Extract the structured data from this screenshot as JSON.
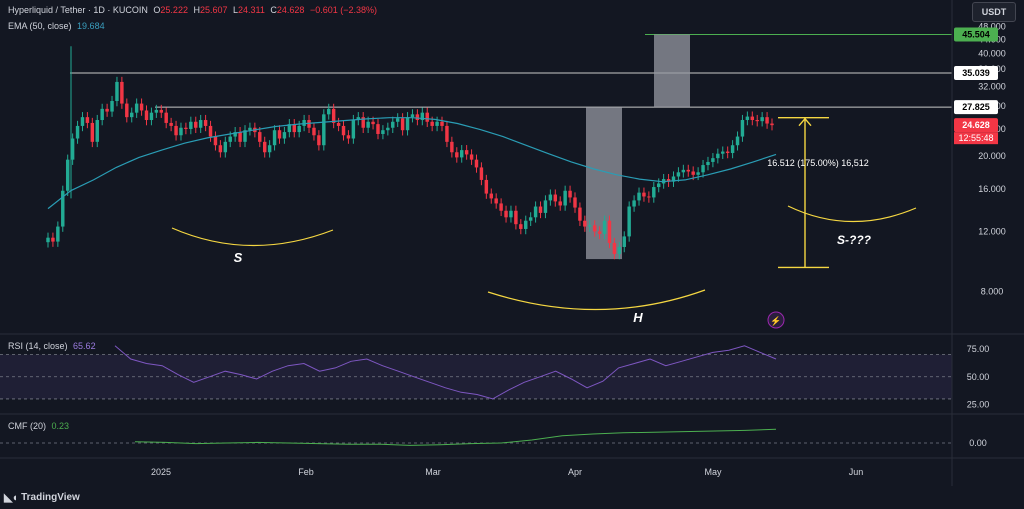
{
  "header": {
    "symbol": "Hyperliquid / Tether · 1D · KUCOIN",
    "open_label": "O",
    "open": "25.222",
    "high_label": "H",
    "high": "25.607",
    "low_label": "L",
    "low": "24.311",
    "close_label": "C",
    "close": "24.628",
    "change": "−0.601 (−2.38%)",
    "ema_label": "EMA (50, close)",
    "ema_value": "19.684"
  },
  "currency_button": "USDT",
  "rsi_header": {
    "label": "RSI (14, close)",
    "value": "65.62"
  },
  "cmf_header": {
    "label": "CMF (20)",
    "value": "0.23"
  },
  "footer": {
    "brand": "TradingView"
  },
  "colors": {
    "background": "#131722",
    "up": "#22ab94",
    "down": "#f23645",
    "ema": "#2a9db5",
    "rsi": "#7e57c2",
    "cmf": "#4caf50",
    "annotation": "#f5d742",
    "level_line": "#c0c0c0"
  },
  "price_axis": {
    "ticks": [
      "48.000",
      "44.000",
      "40.000",
      "36.000",
      "32.000",
      "28.000",
      "24.000",
      "20.000",
      "16.000",
      "12.000",
      "8.000"
    ],
    "tick_values": [
      48,
      44,
      40,
      36,
      32,
      28,
      24,
      20,
      16,
      12,
      8
    ]
  },
  "price_tags": [
    {
      "text": "45.504",
      "value": 45.504,
      "bg": "#4caf50",
      "fg": "#000000"
    },
    {
      "text": "35.039",
      "value": 35.039,
      "bg": "#ffffff",
      "fg": "#000000"
    },
    {
      "text": "27.825",
      "value": 27.825,
      "bg": "#ffffff",
      "fg": "#000000"
    },
    {
      "text": "24.628",
      "value": 24.628,
      "bg": "#f23645",
      "fg": "#ffffff"
    }
  ],
  "countdown": "12:55:48",
  "time_axis": [
    "2025",
    "Feb",
    "Mar",
    "Apr",
    "May",
    "Jun"
  ],
  "rsi_axis": [
    "75.00",
    "50.00",
    "25.00"
  ],
  "cmf_axis": [
    "0.00"
  ],
  "annotations": {
    "measure_text": "16.512 (175.00%) 16,512",
    "left_shoulder": "S",
    "head": "H",
    "right_shoulder": "S-???"
  },
  "chart_data": {
    "type": "candlestick",
    "title": "Hyperliquid / Tether · 1D · KUCOIN",
    "ylim": [
      6.5,
      49.5
    ],
    "scale": "log",
    "closes": [
      11.5,
      11.2,
      12.4,
      15.8,
      19.5,
      22.5,
      24.5,
      26.0,
      25.0,
      22.0,
      25.5,
      27.5,
      27.0,
      29.0,
      33.0,
      28.5,
      26.0,
      26.8,
      28.5,
      27.2,
      25.5,
      26.8,
      27.3,
      26.8,
      25.0,
      24.5,
      23.0,
      24.2,
      24.0,
      25.2,
      24.2,
      25.5,
      24.5,
      22.8,
      21.5,
      20.5,
      22.0,
      22.8,
      23.5,
      22.0,
      23.8,
      24.2,
      23.5,
      22.0,
      20.5,
      21.5,
      23.8,
      22.5,
      23.5,
      24.8,
      23.5,
      24.5,
      25.5,
      24.2,
      23.0,
      21.5,
      26.5,
      27.5,
      25.0,
      24.5,
      23.0,
      22.5,
      25.5,
      26.0,
      24.2,
      25.2,
      24.8,
      23.2,
      23.8,
      24.2,
      25.2,
      25.8,
      23.8,
      26.0,
      26.5,
      25.5,
      26.8,
      25.2,
      24.5,
      25.2,
      24.5,
      22.0,
      20.5,
      19.8,
      20.8,
      20.2,
      19.5,
      18.5,
      17.0,
      15.5,
      15.0,
      14.5,
      13.8,
      13.2,
      13.8,
      12.6,
      12.2,
      12.9,
      13.2,
      14.2,
      13.6,
      14.8,
      15.4,
      14.7,
      14.3,
      15.8,
      15.1,
      14.1,
      12.9,
      12.4,
      12.5,
      12.0,
      11.8,
      12.9,
      11.1,
      10.3,
      10.8,
      11.6,
      14.2,
      14.8,
      15.6,
      15.2,
      15.1,
      16.2,
      16.6,
      17.1,
      16.8,
      17.4,
      17.9,
      18.2,
      18.0,
      17.6,
      17.9,
      18.8,
      19.2,
      19.7,
      20.3,
      20.6,
      20.4,
      21.5,
      22.8,
      25.5,
      26.1,
      25.5,
      25.3,
      26.0,
      24.9,
      24.628
    ],
    "ema50": [
      14.0,
      15.8,
      17.0,
      18.5,
      19.8,
      20.8,
      21.8,
      22.6,
      23.2,
      23.8,
      24.4,
      24.8,
      25.1,
      25.4,
      25.7,
      25.9,
      25.9,
      25.6,
      24.9,
      23.9,
      22.8,
      21.5,
      20.3,
      19.2,
      18.3,
      17.6,
      17.1,
      16.8,
      17.0,
      17.6,
      18.3,
      19.2,
      20.2
    ],
    "rsi": [
      78,
      66,
      62,
      60,
      52,
      45,
      50,
      55,
      52,
      48,
      55,
      60,
      62,
      55,
      58,
      64,
      66,
      60,
      55,
      50,
      45,
      40,
      36,
      34,
      30,
      38,
      45,
      50,
      55,
      48,
      40,
      46,
      58,
      62,
      66,
      60,
      64,
      68,
      72,
      74,
      78,
      72,
      66
    ],
    "cmf": [
      0.02,
      0.01,
      -0.01,
      0.0,
      0.01,
      0.0,
      -0.01,
      -0.02,
      -0.02,
      -0.04,
      -0.03,
      -0.01,
      0.0,
      0.05,
      0.12,
      0.15,
      0.17,
      0.18,
      0.19,
      0.2,
      0.21,
      0.23
    ],
    "rsi_levels": [
      70,
      50,
      30
    ],
    "levels": [
      45.504,
      35.039,
      27.825
    ],
    "measure": {
      "from": 9.4,
      "to": 25.9,
      "delta": "16.512",
      "percent": "175.00%"
    }
  }
}
